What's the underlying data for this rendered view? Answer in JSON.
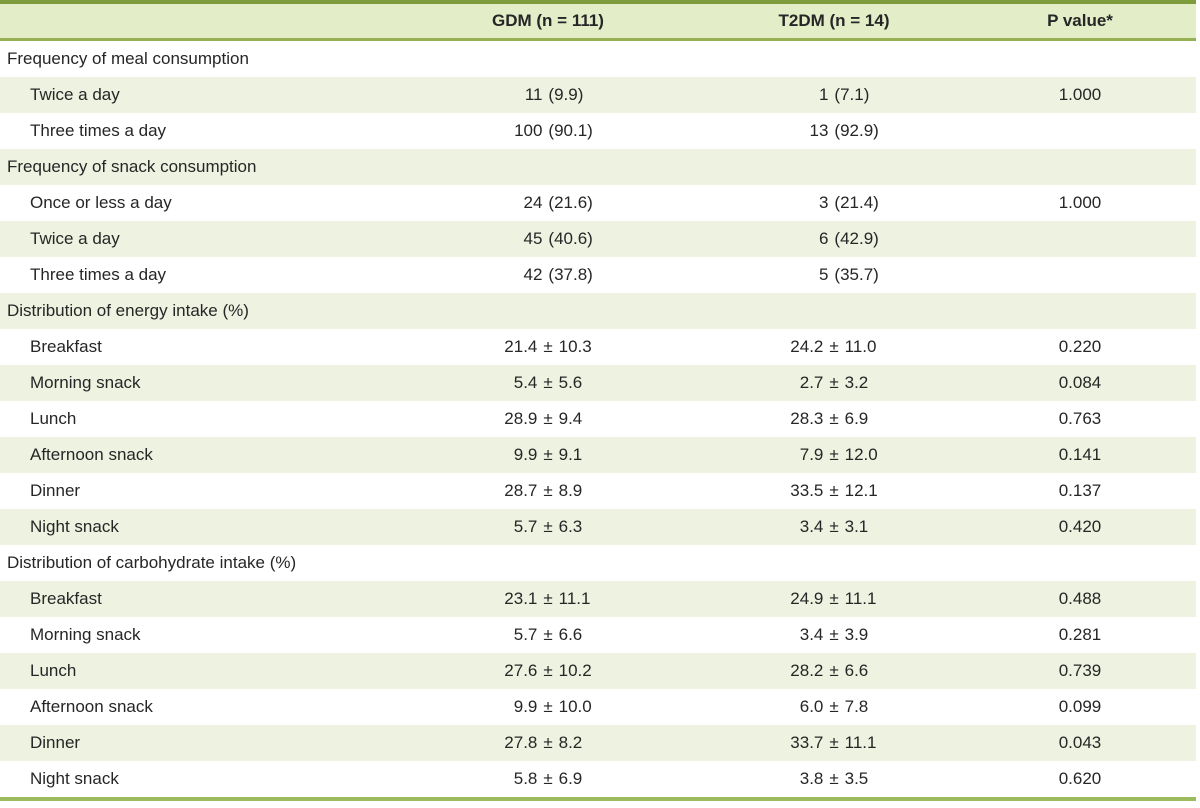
{
  "sym": {
    "pm": "±"
  },
  "columns": [
    "",
    "GDM (n = 111)",
    "T2DM (n = 14)",
    "P value*"
  ],
  "rows": [
    {
      "type": "section",
      "label": "Frequency of meal consumption"
    },
    {
      "type": "count",
      "label": "Twice a day",
      "gdm_n": "11",
      "gdm_pct": "(9.9)",
      "t2dm_n": "1",
      "t2dm_pct": "(7.1)",
      "p": "1.000"
    },
    {
      "type": "count",
      "label": "Three times a day",
      "gdm_n": "100",
      "gdm_pct": "(90.1)",
      "t2dm_n": "13",
      "t2dm_pct": "(92.9)",
      "p": ""
    },
    {
      "type": "section",
      "label": "Frequency of snack consumption"
    },
    {
      "type": "count",
      "label": "Once or less a day",
      "gdm_n": "24",
      "gdm_pct": "(21.6)",
      "t2dm_n": "3",
      "t2dm_pct": "(21.4)",
      "p": "1.000"
    },
    {
      "type": "count",
      "label": "Twice a day",
      "gdm_n": "45",
      "gdm_pct": "(40.6)",
      "t2dm_n": "6",
      "t2dm_pct": "(42.9)",
      "p": ""
    },
    {
      "type": "count",
      "label": "Three times a day",
      "gdm_n": "42",
      "gdm_pct": "(37.8)",
      "t2dm_n": "5",
      "t2dm_pct": "(35.7)",
      "p": ""
    },
    {
      "type": "section",
      "label": "Distribution of energy intake (%)"
    },
    {
      "type": "mean",
      "label": "Breakfast",
      "gdm_m": "21.4",
      "gdm_sd": "10.3",
      "t2dm_m": "24.2",
      "t2dm_sd": "11.0",
      "p": "0.220"
    },
    {
      "type": "mean",
      "label": "Morning snack",
      "gdm_m": "5.4",
      "gdm_sd": "5.6",
      "t2dm_m": "2.7",
      "t2dm_sd": "3.2",
      "p": "0.084"
    },
    {
      "type": "mean",
      "label": "Lunch",
      "gdm_m": "28.9",
      "gdm_sd": "9.4",
      "t2dm_m": "28.3",
      "t2dm_sd": "6.9",
      "p": "0.763"
    },
    {
      "type": "mean",
      "label": "Afternoon snack",
      "gdm_m": "9.9",
      "gdm_sd": "9.1",
      "t2dm_m": "7.9",
      "t2dm_sd": "12.0",
      "p": "0.141"
    },
    {
      "type": "mean",
      "label": "Dinner",
      "gdm_m": "28.7",
      "gdm_sd": "8.9",
      "t2dm_m": "33.5",
      "t2dm_sd": "12.1",
      "p": "0.137"
    },
    {
      "type": "mean",
      "label": "Night snack",
      "gdm_m": "5.7",
      "gdm_sd": "6.3",
      "t2dm_m": "3.4",
      "t2dm_sd": "3.1",
      "p": "0.420"
    },
    {
      "type": "section",
      "label": "Distribution of carbohydrate intake (%)"
    },
    {
      "type": "mean",
      "label": "Breakfast",
      "gdm_m": "23.1",
      "gdm_sd": "11.1",
      "t2dm_m": "24.9",
      "t2dm_sd": "11.1",
      "p": "0.488"
    },
    {
      "type": "mean",
      "label": "Morning snack",
      "gdm_m": "5.7",
      "gdm_sd": "6.6",
      "t2dm_m": "3.4",
      "t2dm_sd": "3.9",
      "p": "0.281"
    },
    {
      "type": "mean",
      "label": "Lunch",
      "gdm_m": "27.6",
      "gdm_sd": "10.2",
      "t2dm_m": "28.2",
      "t2dm_sd": "6.6",
      "p": "0.739"
    },
    {
      "type": "mean",
      "label": "Afternoon snack",
      "gdm_m": "9.9",
      "gdm_sd": "10.0",
      "t2dm_m": "6.0",
      "t2dm_sd": "7.8",
      "p": "0.099"
    },
    {
      "type": "mean",
      "label": "Dinner",
      "gdm_m": "27.8",
      "gdm_sd": "8.2",
      "t2dm_m": "33.7",
      "t2dm_sd": "11.1",
      "p": "0.043"
    },
    {
      "type": "mean",
      "label": "Night snack",
      "gdm_m": "5.8",
      "gdm_sd": "6.9",
      "t2dm_m": "3.8",
      "t2dm_sd": "3.5",
      "p": "0.620"
    }
  ],
  "colors": {
    "header_bg": "#e3edc8",
    "stripe_bg": "#eef2e1",
    "top_border": "#7e9c3b",
    "header_separator": "#94b052",
    "bottom_border": "#9cbb5e",
    "text": "#262626"
  }
}
